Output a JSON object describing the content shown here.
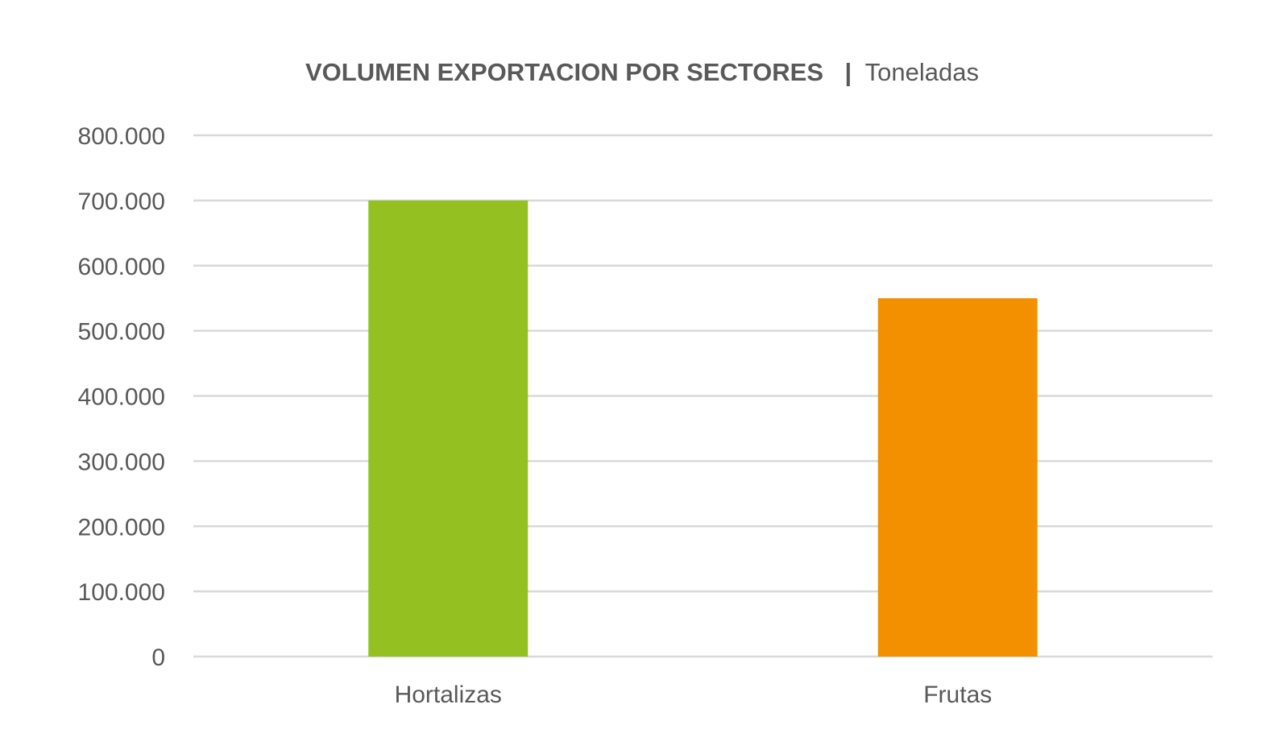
{
  "chart_data": {
    "type": "bar",
    "title": "VOLUMEN EXPORTACION POR SECTORES",
    "title_separator": "|",
    "subtitle": "Toneladas",
    "categories": [
      "Hortalizas",
      "Frutas"
    ],
    "values": [
      700000,
      550000
    ],
    "bar_colors": [
      "#95c022",
      "#f39000"
    ],
    "ylim": [
      0,
      800000
    ],
    "y_ticks": [
      0,
      100000,
      200000,
      300000,
      400000,
      500000,
      600000,
      700000,
      800000
    ],
    "y_tick_labels": [
      "0",
      "100.000",
      "200.000",
      "300.000",
      "400.000",
      "500.000",
      "600.000",
      "700.000",
      "800.000"
    ],
    "grid": true,
    "legend": "none",
    "xlabel": "",
    "ylabel": ""
  }
}
